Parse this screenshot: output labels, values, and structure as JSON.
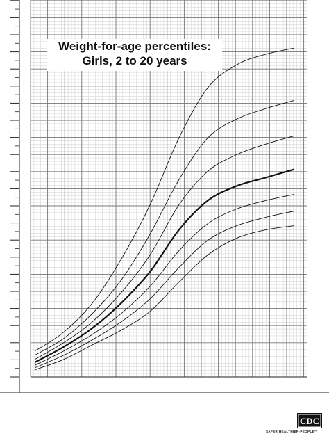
{
  "title_line1": "Weight-for-age percentiles:",
  "title_line2": "Girls, 2 to 20 years",
  "logo": {
    "text": "CDC",
    "tagline": "SAFER·HEALTHIER·PEOPLE™"
  },
  "chart_data": {
    "type": "line",
    "title": "Weight-for-age percentiles: Girls, 2 to 20 years",
    "xlim": [
      2,
      20
    ],
    "xlabel": "",
    "ylabel": "",
    "grid": true,
    "axis_tick_labels_shown": false,
    "x": [
      2,
      4,
      6,
      8,
      10,
      12,
      14,
      16,
      18,
      20
    ],
    "series": [
      {
        "values": [
          15.0,
          19.5,
          26.5,
          37.0,
          50.0,
          66.0,
          78.0,
          83.5,
          86.0,
          87.5
        ]
      },
      {
        "values": [
          14.0,
          18.0,
          24.0,
          32.0,
          43.0,
          56.0,
          66.0,
          70.5,
          73.0,
          75.0
        ]
      },
      {
        "values": [
          13.0,
          17.0,
          22.0,
          29.0,
          38.0,
          50.0,
          58.0,
          62.0,
          64.5,
          66.5
        ]
      },
      {
        "values": [
          12.3,
          16.0,
          20.5,
          26.5,
          34.0,
          44.0,
          51.0,
          54.5,
          56.5,
          58.5
        ],
        "emphasis": true
      },
      {
        "values": [
          11.6,
          15.0,
          19.0,
          24.0,
          30.5,
          39.0,
          45.5,
          49.0,
          51.0,
          52.5
        ]
      },
      {
        "values": [
          11.0,
          14.0,
          17.7,
          22.0,
          27.5,
          35.0,
          41.5,
          45.0,
          47.0,
          48.5
        ]
      },
      {
        "values": [
          10.5,
          13.0,
          16.5,
          20.0,
          24.5,
          31.5,
          38.0,
          42.0,
          44.0,
          45.0
        ]
      }
    ]
  }
}
